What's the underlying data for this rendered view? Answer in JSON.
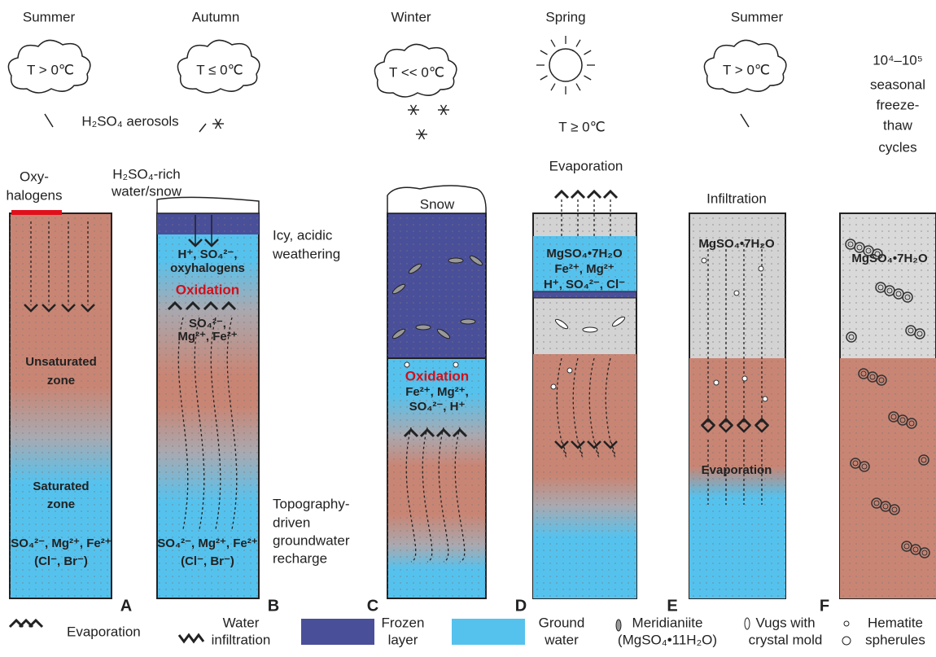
{
  "seasons": [
    "Summer",
    "Autumn",
    "Winter",
    "Spring",
    "Summer"
  ],
  "temperatures": [
    "T > 0℃",
    "T ≤ 0℃",
    "T << 0℃",
    "T ≥ 0℃",
    "T > 0℃"
  ],
  "aerosols": "H₂SO₄ aerosols",
  "cycles": [
    "10⁴–10⁵",
    "seasonal",
    "freeze-",
    "thaw",
    "cycles"
  ],
  "annotations": {
    "oxyhalogens": [
      "Oxy-",
      "halogens"
    ],
    "acid_water": [
      "H₂SO₄-rich",
      "water/snow"
    ],
    "snow": "Snow",
    "evaporation": "Evaporation",
    "infiltration": "Infiltration",
    "weathering": [
      "Icy, acidic",
      "weathering"
    ],
    "recharge": [
      "Topography-",
      "driven",
      "groundwater",
      "recharge"
    ]
  },
  "panels": [
    {
      "letter": "A",
      "labels": [
        "Unsaturated",
        "zone",
        "Saturated",
        "zone",
        "SO₄²⁻, Mg²⁺, Fe²⁺",
        "(Cl⁻, Br⁻)"
      ]
    },
    {
      "letter": "B",
      "labels": [
        "H⁺, SO₄²⁻,",
        "oxyhalogens",
        "Oxidation",
        "SO₄²⁻,",
        "Mg²⁺, Fe²⁺",
        "SO₄²⁻, Mg²⁺, Fe²⁺",
        "(Cl⁻, Br⁻)"
      ]
    },
    {
      "letter": "C",
      "labels": [
        "Oxidation",
        "Fe²⁺, Mg²⁺,",
        "SO₄²⁻, H⁺"
      ]
    },
    {
      "letter": "D",
      "labels": [
        "MgSO₄•7H₂O",
        "Fe²⁺, Mg²⁺",
        "H⁺, SO₄²⁻, Cl⁻"
      ]
    },
    {
      "letter": "E",
      "labels": [
        "MgSO₄•7H₂O",
        "Evaporation"
      ]
    },
    {
      "letter": "F",
      "labels": [
        "MgSO₄•7H₂O"
      ]
    }
  ],
  "legend": [
    [
      "Evaporation"
    ],
    [
      "Water",
      "infiltration"
    ],
    [
      "Frozen",
      "layer"
    ],
    [
      "Ground",
      "water"
    ],
    [
      "Meridianiite",
      "(MgSO₄•11H₂O)"
    ],
    [
      "Vugs with",
      "crystal mold"
    ],
    [
      "Hematite",
      "spherules"
    ]
  ]
}
